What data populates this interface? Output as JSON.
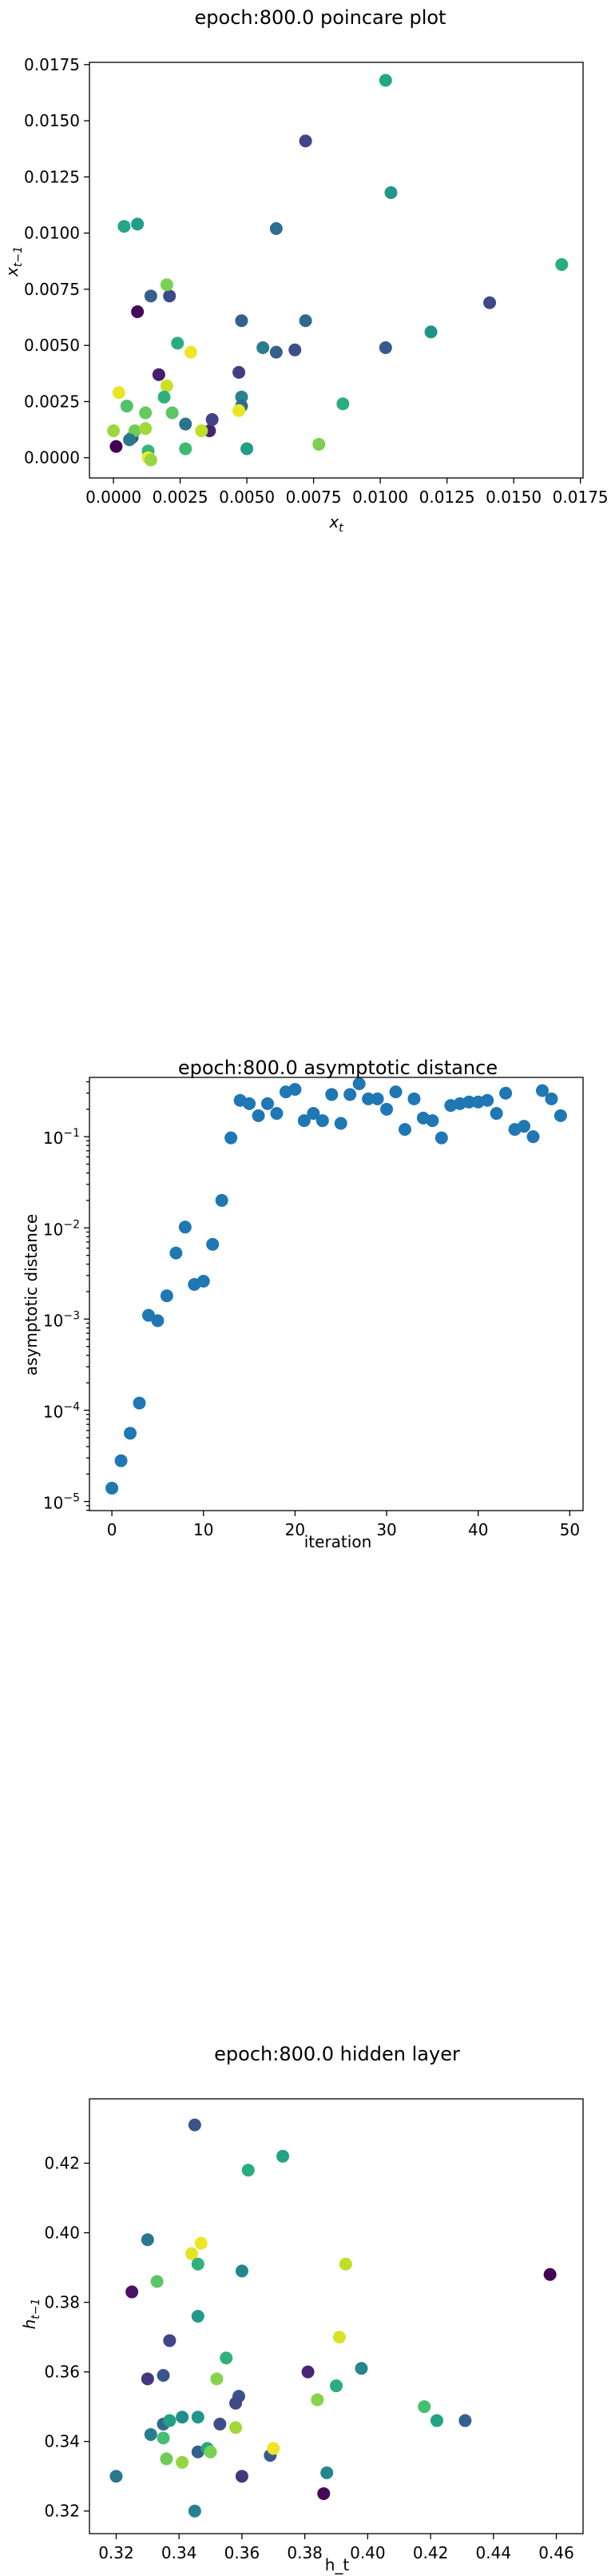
{
  "chart_data": [
    {
      "type": "scatter",
      "title": "epoch:800.0 poincare plot",
      "xlabel": "x_t",
      "ylabel": "x_{t−1}",
      "xlim": [
        -0.0009,
        0.0176
      ],
      "ylim": [
        -0.0009,
        0.0176
      ],
      "xticks": [
        0.0,
        0.0025,
        0.005,
        0.0075,
        0.01,
        0.0125,
        0.015,
        0.0175
      ],
      "xtick_labels": [
        "0.0000",
        "0.0025",
        "0.0050",
        "0.0075",
        "0.0100",
        "0.0125",
        "0.0150",
        "0.0175"
      ],
      "yticks": [
        0.0,
        0.0025,
        0.005,
        0.0075,
        0.01,
        0.0125,
        0.015,
        0.0175
      ],
      "ytick_labels": [
        "0.0000",
        "0.0025",
        "0.0050",
        "0.0075",
        "0.0100",
        "0.0125",
        "0.0150",
        "0.0175"
      ],
      "colormap": "viridis",
      "points": [
        {
          "x": 0.0001,
          "y": 0.0005,
          "c": 0.0
        },
        {
          "x": 0.0007,
          "y": 0.0009,
          "c": 0.25
        },
        {
          "x": 0.0009,
          "y": 0.0065,
          "c": 0.02
        },
        {
          "x": 0.0014,
          "y": 0.0072,
          "c": 0.3
        },
        {
          "x": 0.0017,
          "y": 0.0037,
          "c": 0.08
        },
        {
          "x": 0.0021,
          "y": 0.0072,
          "c": 0.22
        },
        {
          "x": 0.0027,
          "y": 0.0015,
          "c": 0.38
        },
        {
          "x": 0.0036,
          "y": 0.0012,
          "c": 0.1
        },
        {
          "x": 0.0037,
          "y": 0.0017,
          "c": 0.2
        },
        {
          "x": 0.0047,
          "y": 0.0038,
          "c": 0.18
        },
        {
          "x": 0.0048,
          "y": 0.0061,
          "c": 0.3
        },
        {
          "x": 0.0048,
          "y": 0.0027,
          "c": 0.45
        },
        {
          "x": 0.0048,
          "y": 0.0023,
          "c": 0.34
        },
        {
          "x": 0.005,
          "y": 0.0004,
          "c": 0.55
        },
        {
          "x": 0.0056,
          "y": 0.0049,
          "c": 0.42
        },
        {
          "x": 0.0061,
          "y": 0.0102,
          "c": 0.36
        },
        {
          "x": 0.0061,
          "y": 0.0047,
          "c": 0.3
        },
        {
          "x": 0.0068,
          "y": 0.0048,
          "c": 0.24
        },
        {
          "x": 0.0072,
          "y": 0.0141,
          "c": 0.2
        },
        {
          "x": 0.0072,
          "y": 0.0061,
          "c": 0.34
        },
        {
          "x": 0.0077,
          "y": 0.0006,
          "c": 0.8
        },
        {
          "x": 0.0086,
          "y": 0.0024,
          "c": 0.62
        },
        {
          "x": 0.0102,
          "y": 0.0168,
          "c": 0.6
        },
        {
          "x": 0.0102,
          "y": 0.0049,
          "c": 0.28
        },
        {
          "x": 0.0104,
          "y": 0.0118,
          "c": 0.52
        },
        {
          "x": 0.0119,
          "y": 0.0056,
          "c": 0.5
        },
        {
          "x": 0.0141,
          "y": 0.0069,
          "c": 0.22
        },
        {
          "x": 0.0168,
          "y": 0.0086,
          "c": 0.62
        },
        {
          "x": 0.0004,
          "y": 0.0103,
          "c": 0.6
        },
        {
          "x": 0.0009,
          "y": 0.0104,
          "c": 0.55
        },
        {
          "x": 0.002,
          "y": 0.0077,
          "c": 0.8
        },
        {
          "x": 0.0024,
          "y": 0.0051,
          "c": 0.62
        },
        {
          "x": 0.0029,
          "y": 0.0047,
          "c": 0.98
        },
        {
          "x": 0.002,
          "y": 0.0032,
          "c": 0.92
        },
        {
          "x": 0.0019,
          "y": 0.0027,
          "c": 0.64
        },
        {
          "x": 0.0022,
          "y": 0.002,
          "c": 0.74
        },
        {
          "x": 0.0002,
          "y": 0.0029,
          "c": 0.97
        },
        {
          "x": 0.0005,
          "y": 0.0023,
          "c": 0.72
        },
        {
          "x": 0.0,
          "y": 0.0012,
          "c": 0.85
        },
        {
          "x": 0.0008,
          "y": 0.0012,
          "c": 0.78
        },
        {
          "x": 0.0012,
          "y": 0.0013,
          "c": 0.86
        },
        {
          "x": 0.0012,
          "y": 0.002,
          "c": 0.76
        },
        {
          "x": 0.0006,
          "y": 0.0008,
          "c": 0.4
        },
        {
          "x": 0.0013,
          "y": 0.0003,
          "c": 0.66
        },
        {
          "x": 0.0013,
          "y": 0.0,
          "c": 0.99
        },
        {
          "x": 0.0014,
          "y": -0.0001,
          "c": 0.84
        },
        {
          "x": 0.0027,
          "y": 0.0004,
          "c": 0.68
        },
        {
          "x": 0.0033,
          "y": 0.0012,
          "c": 0.9
        },
        {
          "x": 0.0047,
          "y": 0.0021,
          "c": 0.97
        }
      ]
    },
    {
      "type": "scatter",
      "title": "epoch:800.0 asymptotic distance",
      "xlabel": "iteration",
      "ylabel": "asymptotic distance",
      "yscale": "log",
      "xlim": [
        -2.45,
        51.45
      ],
      "ylim_log10": [
        -5.1,
        -0.35
      ],
      "xticks": [
        0,
        10,
        20,
        30,
        40,
        50
      ],
      "xtick_labels": [
        "0",
        "10",
        "20",
        "30",
        "40",
        "50"
      ],
      "yticks": [
        -5,
        -4,
        -3,
        -2,
        -1
      ],
      "ytick_labels": [
        [
          "10",
          "−5"
        ],
        [
          "10",
          "−4"
        ],
        [
          "10",
          "−3"
        ],
        [
          "10",
          "−2"
        ],
        [
          "10",
          "−1"
        ]
      ],
      "color": "#1f77b4",
      "x": [
        0,
        1,
        2,
        3,
        4,
        5,
        6,
        7,
        8,
        9,
        10,
        11,
        12,
        13,
        14,
        15,
        16,
        17,
        18,
        19,
        20,
        21,
        22,
        23,
        24,
        25,
        26,
        27,
        28,
        29,
        30,
        31,
        32,
        33,
        34,
        35,
        36,
        37,
        38,
        39,
        40,
        41,
        42,
        43,
        44,
        45,
        46,
        47,
        48,
        49
      ],
      "y": [
        1.4e-05,
        2.8e-05,
        5.6e-05,
        0.00012,
        0.0011,
        0.00096,
        0.0018,
        0.0053,
        0.0102,
        0.0024,
        0.0026,
        0.0066,
        0.02,
        0.097,
        0.25,
        0.23,
        0.17,
        0.23,
        0.18,
        0.31,
        0.33,
        0.15,
        0.18,
        0.15,
        0.29,
        0.14,
        0.29,
        0.38,
        0.26,
        0.26,
        0.2,
        0.31,
        0.12,
        0.26,
        0.16,
        0.15,
        0.097,
        0.22,
        0.23,
        0.24,
        0.24,
        0.25,
        0.18,
        0.3,
        0.12,
        0.13,
        0.1,
        0.32,
        0.26,
        0.17
      ]
    },
    {
      "type": "scatter",
      "title": "epoch:800.0 hidden layer",
      "xlabel": "h_t",
      "ylabel": "h_{t−1}",
      "xlim": [
        0.3115,
        0.4685
      ],
      "ylim": [
        0.3135,
        0.4385
      ],
      "xticks": [
        0.32,
        0.34,
        0.36,
        0.38,
        0.4,
        0.42,
        0.44,
        0.46
      ],
      "xtick_labels": [
        "0.32",
        "0.34",
        "0.36",
        "0.38",
        "0.40",
        "0.42",
        "0.44",
        "0.46"
      ],
      "yticks": [
        0.32,
        0.34,
        0.36,
        0.38,
        0.4,
        0.42
      ],
      "ytick_labels": [
        "0.32",
        "0.34",
        "0.36",
        "0.38",
        "0.40",
        "0.42"
      ],
      "colormap": "viridis",
      "points": [
        {
          "x": 0.345,
          "y": 0.431,
          "c": 0.26
        },
        {
          "x": 0.362,
          "y": 0.418,
          "c": 0.62
        },
        {
          "x": 0.373,
          "y": 0.422,
          "c": 0.58
        },
        {
          "x": 0.33,
          "y": 0.398,
          "c": 0.4
        },
        {
          "x": 0.347,
          "y": 0.397,
          "c": 0.98
        },
        {
          "x": 0.344,
          "y": 0.394,
          "c": 0.96
        },
        {
          "x": 0.346,
          "y": 0.391,
          "c": 0.64
        },
        {
          "x": 0.393,
          "y": 0.391,
          "c": 0.9
        },
        {
          "x": 0.36,
          "y": 0.389,
          "c": 0.46
        },
        {
          "x": 0.458,
          "y": 0.388,
          "c": 0.0
        },
        {
          "x": 0.325,
          "y": 0.383,
          "c": 0.05
        },
        {
          "x": 0.333,
          "y": 0.386,
          "c": 0.74
        },
        {
          "x": 0.337,
          "y": 0.369,
          "c": 0.2
        },
        {
          "x": 0.346,
          "y": 0.376,
          "c": 0.54
        },
        {
          "x": 0.391,
          "y": 0.37,
          "c": 0.94
        },
        {
          "x": 0.355,
          "y": 0.364,
          "c": 0.64
        },
        {
          "x": 0.33,
          "y": 0.358,
          "c": 0.16
        },
        {
          "x": 0.335,
          "y": 0.359,
          "c": 0.26
        },
        {
          "x": 0.352,
          "y": 0.358,
          "c": 0.82
        },
        {
          "x": 0.381,
          "y": 0.36,
          "c": 0.1
        },
        {
          "x": 0.398,
          "y": 0.361,
          "c": 0.45
        },
        {
          "x": 0.39,
          "y": 0.356,
          "c": 0.62
        },
        {
          "x": 0.359,
          "y": 0.353,
          "c": 0.26
        },
        {
          "x": 0.358,
          "y": 0.351,
          "c": 0.22
        },
        {
          "x": 0.384,
          "y": 0.352,
          "c": 0.82
        },
        {
          "x": 0.418,
          "y": 0.35,
          "c": 0.7
        },
        {
          "x": 0.422,
          "y": 0.346,
          "c": 0.58
        },
        {
          "x": 0.431,
          "y": 0.346,
          "c": 0.3
        },
        {
          "x": 0.331,
          "y": 0.342,
          "c": 0.42
        },
        {
          "x": 0.335,
          "y": 0.345,
          "c": 0.34
        },
        {
          "x": 0.337,
          "y": 0.346,
          "c": 0.56
        },
        {
          "x": 0.341,
          "y": 0.347,
          "c": 0.48
        },
        {
          "x": 0.346,
          "y": 0.347,
          "c": 0.52
        },
        {
          "x": 0.353,
          "y": 0.345,
          "c": 0.24
        },
        {
          "x": 0.358,
          "y": 0.344,
          "c": 0.86
        },
        {
          "x": 0.335,
          "y": 0.341,
          "c": 0.7
        },
        {
          "x": 0.346,
          "y": 0.337,
          "c": 0.3
        },
        {
          "x": 0.349,
          "y": 0.338,
          "c": 0.6
        },
        {
          "x": 0.35,
          "y": 0.337,
          "c": 0.8
        },
        {
          "x": 0.336,
          "y": 0.335,
          "c": 0.78
        },
        {
          "x": 0.341,
          "y": 0.334,
          "c": 0.84
        },
        {
          "x": 0.369,
          "y": 0.336,
          "c": 0.28
        },
        {
          "x": 0.37,
          "y": 0.338,
          "c": 0.98
        },
        {
          "x": 0.32,
          "y": 0.33,
          "c": 0.4
        },
        {
          "x": 0.36,
          "y": 0.33,
          "c": 0.16
        },
        {
          "x": 0.387,
          "y": 0.331,
          "c": 0.46
        },
        {
          "x": 0.386,
          "y": 0.325,
          "c": 0.02
        },
        {
          "x": 0.345,
          "y": 0.32,
          "c": 0.44
        }
      ]
    }
  ]
}
